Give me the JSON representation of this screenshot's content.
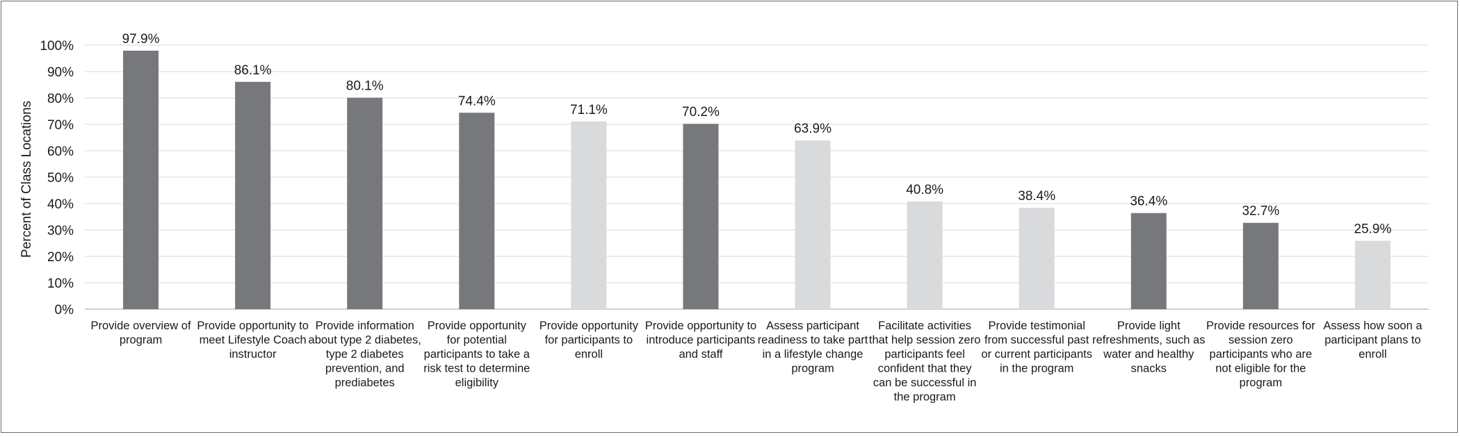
{
  "chart_data": {
    "type": "bar",
    "title": "",
    "xlabel": "",
    "ylabel": "Percent of Class Locations",
    "ylim": [
      0,
      100
    ],
    "ytick_step": 10,
    "grid": true,
    "categories": [
      [
        "Provide overview of",
        "program"
      ],
      [
        "Provide opportunity to",
        "meet Lifestyle Coach",
        "instructor"
      ],
      [
        "Provide information",
        "about type 2 diabetes,",
        "type 2 diabetes",
        "prevention, and",
        "prediabetes"
      ],
      [
        "Provide opportunity",
        "for potential",
        "participants to take a",
        "risk test to determine",
        "eligibility"
      ],
      [
        "Provide opportunity",
        "for participants to",
        "enroll"
      ],
      [
        "Provide opportunity to",
        "introduce participants",
        "and staff"
      ],
      [
        "Assess participant",
        "readiness to take part",
        "in a lifestyle change",
        "program"
      ],
      [
        "Facilitate activities",
        "that help session zero",
        "participants feel",
        "confident that they",
        "can be successful in",
        "the program"
      ],
      [
        "Provide testimonial",
        "from successful past",
        "or current participants",
        "in the program"
      ],
      [
        "Provide light",
        "refreshments, such as",
        "water and healthy",
        "snacks"
      ],
      [
        "Provide resources for",
        "session zero",
        "participants who are",
        "not eligible for the",
        "program"
      ],
      [
        "Assess how soon a",
        "participant plans to",
        "enroll"
      ]
    ],
    "values": [
      97.9,
      86.1,
      80.1,
      74.4,
      71.1,
      70.2,
      63.9,
      40.8,
      38.4,
      36.4,
      32.7,
      25.9
    ],
    "value_labels": [
      "97.9%",
      "86.1%",
      "80.1%",
      "74.4%",
      "71.1%",
      "70.2%",
      "63.9%",
      "40.8%",
      "38.4%",
      "36.4%",
      "32.7%",
      "25.9%"
    ],
    "shade": [
      "dark",
      "dark",
      "dark",
      "dark",
      "light",
      "dark",
      "light",
      "light",
      "light",
      "dark",
      "dark",
      "light"
    ],
    "colors": {
      "dark": "#77787b",
      "light": "#d9dadb",
      "grid": "#d9d9d9",
      "axis": "#bfbfbf"
    }
  }
}
